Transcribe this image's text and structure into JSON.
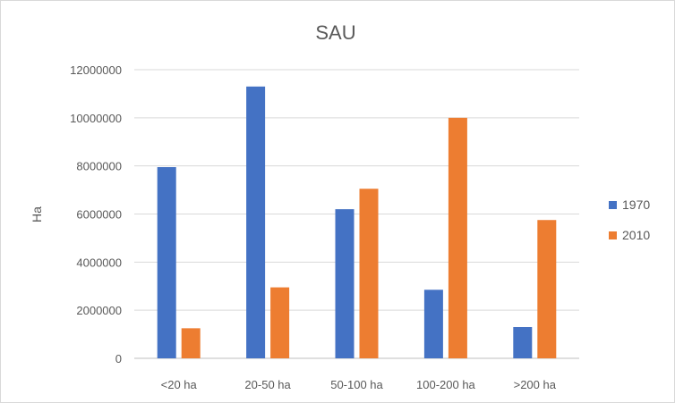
{
  "chart_data": {
    "type": "bar",
    "title": "SAU",
    "xlabel": "",
    "ylabel": "Ha",
    "categories": [
      "<20 ha",
      "20-50 ha",
      "50-100 ha",
      "100-200 ha",
      ">200 ha"
    ],
    "series": [
      {
        "name": "1970",
        "color": "#4472C4",
        "values": [
          7950000,
          11300000,
          6200000,
          2850000,
          1300000
        ]
      },
      {
        "name": "2010",
        "color": "#ED7D31",
        "values": [
          1250000,
          2950000,
          7050000,
          10000000,
          5750000
        ]
      }
    ],
    "ylim": [
      0,
      12000000
    ],
    "yticks": [
      "0",
      "2000000",
      "4000000",
      "6000000",
      "8000000",
      "10000000",
      "12000000"
    ],
    "grid": true,
    "legend_position": "right"
  }
}
